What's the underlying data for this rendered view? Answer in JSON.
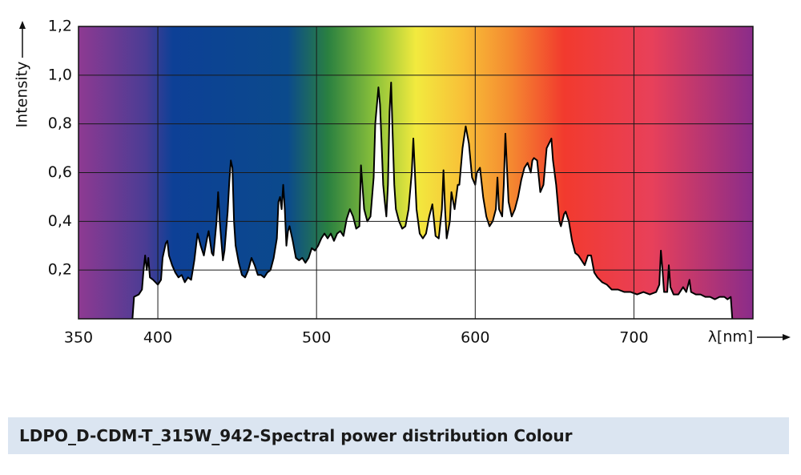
{
  "chart_data": {
    "type": "line",
    "title": "LDPO_D-CDM-T_315W_942-Spectral power distribution Colour",
    "x_label": "λ[nm]",
    "y_label": "Intensity",
    "xlim": [
      350,
      775
    ],
    "ylim": [
      0,
      1.2
    ],
    "xticks": [
      350,
      400,
      500,
      600,
      700
    ],
    "yticks": [
      {
        "value": 0.2,
        "label": "0,2"
      },
      {
        "value": 0.4,
        "label": "0,4"
      },
      {
        "value": 0.6,
        "label": "0,6"
      },
      {
        "value": 0.8,
        "label": "0,8"
      },
      {
        "value": 1.0,
        "label": "1,0"
      },
      {
        "value": 1.2,
        "label": "1,2"
      }
    ],
    "grid": true,
    "series": [
      {
        "color": "#000000",
        "fill": "#ffffff",
        "x": [
          384,
          385,
          388,
          390,
          391,
          392,
          393,
          394,
          395,
          397,
          400,
          402,
          403,
          405,
          406,
          407,
          409,
          411,
          413,
          415,
          417,
          419,
          421,
          423,
          425,
          427,
          429,
          431,
          432,
          434,
          435,
          437,
          438,
          439,
          441,
          442,
          444,
          445,
          446,
          447,
          448,
          449,
          451,
          453,
          455,
          457,
          459,
          461,
          463,
          465,
          467,
          469,
          471,
          473,
          475,
          476,
          477,
          478,
          479,
          480,
          481,
          482,
          483,
          485,
          487,
          489,
          491,
          493,
          495,
          497,
          499,
          501,
          503,
          505,
          507,
          509,
          511,
          513,
          515,
          517,
          519,
          521,
          523,
          525,
          527,
          528,
          530,
          532,
          534,
          536,
          537,
          539,
          540,
          541,
          542,
          543,
          544,
          545,
          546,
          547,
          548,
          549,
          550,
          552,
          554,
          556,
          558,
          560,
          561,
          562,
          563,
          565,
          567,
          569,
          571,
          573,
          575,
          577,
          579,
          580,
          581,
          582,
          584,
          585,
          587,
          589,
          590,
          592,
          594,
          596,
          598,
          600,
          601,
          603,
          605,
          607,
          609,
          611,
          613,
          614,
          615,
          617,
          618,
          619,
          620,
          621,
          623,
          625,
          627,
          629,
          631,
          633,
          635,
          636,
          637,
          639,
          641,
          643,
          645,
          648,
          649,
          651,
          653,
          654,
          656,
          657,
          659,
          661,
          663,
          665,
          667,
          669,
          671,
          673,
          675,
          677,
          680,
          683,
          686,
          690,
          694,
          698,
          702,
          706,
          710,
          714,
          716,
          717,
          718,
          719,
          721,
          722,
          723,
          725,
          728,
          731,
          733,
          735,
          736,
          739,
          742,
          745,
          748,
          751,
          754,
          757,
          759,
          761,
          762
        ],
        "values": [
          0,
          0.09,
          0.1,
          0.12,
          0.2,
          0.26,
          0.2,
          0.25,
          0.17,
          0.16,
          0.14,
          0.16,
          0.25,
          0.31,
          0.32,
          0.26,
          0.22,
          0.19,
          0.17,
          0.18,
          0.15,
          0.17,
          0.16,
          0.24,
          0.35,
          0.3,
          0.26,
          0.33,
          0.36,
          0.27,
          0.26,
          0.4,
          0.52,
          0.4,
          0.24,
          0.28,
          0.44,
          0.56,
          0.65,
          0.62,
          0.4,
          0.3,
          0.23,
          0.18,
          0.17,
          0.2,
          0.25,
          0.22,
          0.18,
          0.18,
          0.17,
          0.19,
          0.2,
          0.25,
          0.33,
          0.48,
          0.5,
          0.45,
          0.55,
          0.45,
          0.3,
          0.36,
          0.38,
          0.32,
          0.25,
          0.24,
          0.25,
          0.23,
          0.25,
          0.29,
          0.28,
          0.3,
          0.33,
          0.35,
          0.33,
          0.35,
          0.32,
          0.35,
          0.36,
          0.34,
          0.41,
          0.45,
          0.42,
          0.37,
          0.38,
          0.63,
          0.45,
          0.4,
          0.42,
          0.58,
          0.8,
          0.95,
          0.88,
          0.72,
          0.55,
          0.48,
          0.42,
          0.55,
          0.85,
          0.97,
          0.75,
          0.55,
          0.45,
          0.4,
          0.37,
          0.38,
          0.45,
          0.6,
          0.74,
          0.6,
          0.45,
          0.35,
          0.33,
          0.35,
          0.42,
          0.47,
          0.34,
          0.33,
          0.45,
          0.61,
          0.45,
          0.33,
          0.4,
          0.52,
          0.45,
          0.55,
          0.55,
          0.7,
          0.79,
          0.72,
          0.58,
          0.55,
          0.6,
          0.62,
          0.5,
          0.42,
          0.38,
          0.4,
          0.45,
          0.58,
          0.45,
          0.42,
          0.55,
          0.76,
          0.62,
          0.48,
          0.42,
          0.45,
          0.5,
          0.57,
          0.62,
          0.64,
          0.6,
          0.65,
          0.66,
          0.65,
          0.52,
          0.55,
          0.7,
          0.74,
          0.65,
          0.55,
          0.4,
          0.38,
          0.43,
          0.44,
          0.4,
          0.32,
          0.27,
          0.26,
          0.24,
          0.22,
          0.26,
          0.26,
          0.19,
          0.17,
          0.15,
          0.14,
          0.12,
          0.12,
          0.11,
          0.11,
          0.1,
          0.11,
          0.1,
          0.11,
          0.14,
          0.28,
          0.2,
          0.11,
          0.11,
          0.22,
          0.13,
          0.1,
          0.1,
          0.13,
          0.11,
          0.16,
          0.11,
          0.1,
          0.1,
          0.09,
          0.09,
          0.08,
          0.09,
          0.09,
          0.08,
          0.09,
          0
        ]
      }
    ]
  }
}
